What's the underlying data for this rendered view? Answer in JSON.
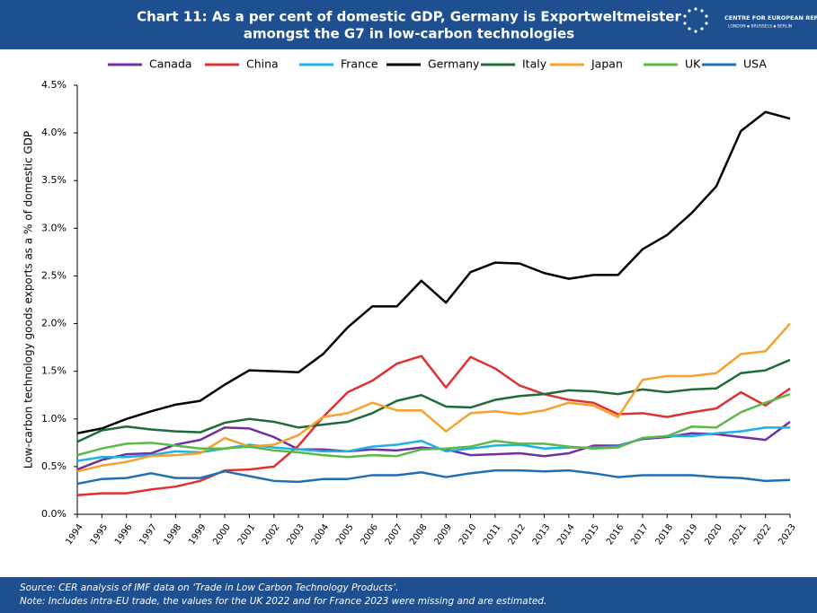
{
  "chart_data": {
    "type": "line",
    "title": [
      "Chart 11: As a per cent of domestic GDP, Germany is Exportweltmeister",
      "amongst the G7 in low-carbon technologies"
    ],
    "logo": [
      "CENTRE FOR EUROPEAN REFORM",
      "LONDON ▪ BRUSSELS ▪ BERLIN"
    ],
    "ylabel": "Low-carbon technology goods exports as a % of domestic GDP",
    "notes": [
      "Source: CER analysis of IMF data on ‘Trade in Low Carbon Technology Products’.",
      "Note: Includes intra-EU trade, the values for the UK 2022 and for France 2023 were missing and are estimated."
    ],
    "categories": [
      "1994",
      "1995",
      "1996",
      "1997",
      "1998",
      "1999",
      "2000",
      "2001",
      "2002",
      "2003",
      "2004",
      "2005",
      "2006",
      "2007",
      "2008",
      "2009",
      "2010",
      "2011",
      "2012",
      "2013",
      "2014",
      "2015",
      "2016",
      "2017",
      "2018",
      "2019",
      "2020",
      "2021",
      "2022",
      "2023"
    ],
    "ylim": [
      0,
      4.5
    ],
    "yticks": [
      {
        "value": 0,
        "label": "0.0%"
      },
      {
        "value": 0.5,
        "label": "0.5%"
      },
      {
        "value": 1,
        "label": "1.0%"
      },
      {
        "value": 1.5,
        "label": "1.5%"
      },
      {
        "value": 2,
        "label": "2.0%"
      },
      {
        "value": 2.5,
        "label": "2.5%"
      },
      {
        "value": 3,
        "label": "3.0%"
      },
      {
        "value": 3.5,
        "label": "3.5%"
      },
      {
        "value": 4,
        "label": "4.0%"
      },
      {
        "value": 4.5,
        "label": "4.5%"
      }
    ],
    "grid": false,
    "legend": "top",
    "series": [
      {
        "name": "Canada",
        "color": "#7030a0",
        "values": [
          0.47,
          0.57,
          0.63,
          0.64,
          0.73,
          0.78,
          0.91,
          0.9,
          0.81,
          0.68,
          0.68,
          0.66,
          0.68,
          0.67,
          0.7,
          0.68,
          0.62,
          0.63,
          0.64,
          0.61,
          0.64,
          0.72,
          0.72,
          0.79,
          0.81,
          0.85,
          0.84,
          0.81,
          0.78,
          0.97
        ]
      },
      {
        "name": "China",
        "color": "#e03030",
        "values": [
          0.2,
          0.22,
          0.22,
          0.26,
          0.29,
          0.35,
          0.46,
          0.47,
          0.5,
          0.72,
          1.02,
          1.28,
          1.4,
          1.58,
          1.66,
          1.33,
          1.65,
          1.53,
          1.35,
          1.26,
          1.2,
          1.17,
          1.05,
          1.06,
          1.02,
          1.07,
          1.11,
          1.28,
          1.14,
          1.32
        ]
      },
      {
        "name": "France",
        "color": "#1fb0e6",
        "values": [
          0.56,
          0.6,
          0.6,
          0.62,
          0.66,
          0.65,
          0.69,
          0.73,
          0.7,
          0.68,
          0.66,
          0.66,
          0.71,
          0.73,
          0.77,
          0.66,
          0.69,
          0.72,
          0.73,
          0.69,
          0.7,
          0.7,
          0.71,
          0.8,
          0.82,
          0.82,
          0.85,
          0.87,
          0.91,
          0.91
        ]
      },
      {
        "name": "Germany",
        "color": "#000000",
        "values": [
          0.85,
          0.9,
          1.0,
          1.08,
          1.15,
          1.19,
          1.36,
          1.51,
          1.5,
          1.49,
          1.68,
          1.96,
          2.18,
          2.18,
          2.45,
          2.22,
          2.54,
          2.64,
          2.63,
          2.53,
          2.47,
          2.51,
          2.51,
          2.78,
          2.93,
          3.16,
          3.44,
          4.02,
          4.22,
          4.15
        ]
      },
      {
        "name": "Italy",
        "color": "#1e6b3a",
        "values": [
          0.76,
          0.88,
          0.92,
          0.89,
          0.87,
          0.86,
          0.96,
          1.0,
          0.97,
          0.91,
          0.94,
          0.97,
          1.06,
          1.19,
          1.25,
          1.13,
          1.12,
          1.2,
          1.24,
          1.26,
          1.3,
          1.29,
          1.26,
          1.31,
          1.28,
          1.31,
          1.32,
          1.48,
          1.51,
          1.62
        ]
      },
      {
        "name": "Japan",
        "color": "#f7a02c",
        "values": [
          0.45,
          0.51,
          0.55,
          0.61,
          0.62,
          0.64,
          0.8,
          0.71,
          0.73,
          0.83,
          1.02,
          1.06,
          1.17,
          1.09,
          1.09,
          0.87,
          1.06,
          1.08,
          1.05,
          1.09,
          1.17,
          1.14,
          1.02,
          1.41,
          1.45,
          1.45,
          1.48,
          1.68,
          1.71,
          2.0
        ]
      },
      {
        "name": "UK",
        "color": "#5cb947",
        "values": [
          0.62,
          0.69,
          0.74,
          0.75,
          0.72,
          0.69,
          0.69,
          0.71,
          0.67,
          0.65,
          0.62,
          0.6,
          0.62,
          0.61,
          0.68,
          0.69,
          0.71,
          0.77,
          0.74,
          0.74,
          0.71,
          0.69,
          0.7,
          0.8,
          0.82,
          0.92,
          0.91,
          1.07,
          1.17,
          1.26
        ]
      },
      {
        "name": "USA",
        "color": "#1f6fb5",
        "values": [
          0.32,
          0.37,
          0.38,
          0.43,
          0.38,
          0.38,
          0.45,
          0.4,
          0.35,
          0.34,
          0.37,
          0.37,
          0.41,
          0.41,
          0.44,
          0.39,
          0.43,
          0.46,
          0.46,
          0.45,
          0.46,
          0.43,
          0.39,
          0.41,
          0.41,
          0.41,
          0.39,
          0.38,
          0.35,
          0.36
        ]
      }
    ]
  }
}
